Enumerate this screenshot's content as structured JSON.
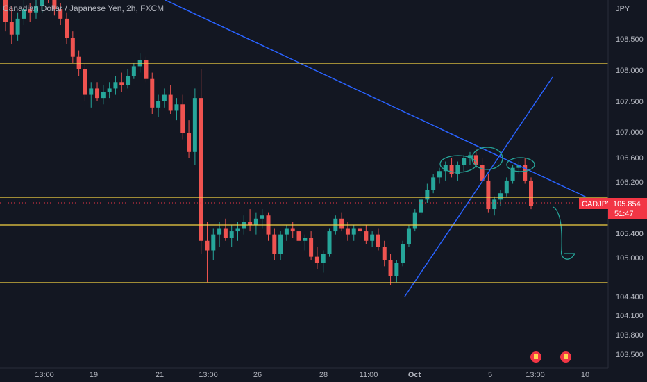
{
  "header": {
    "title": "Canadian Dollar / Japanese Yen, 2h, FXCM"
  },
  "chart_data": {
    "type": "candlestick",
    "symbol": "CADJPY",
    "currency": "JPY",
    "price_ticks": [
      "108.500",
      "108.000",
      "107.500",
      "107.000",
      "106.600",
      "106.200",
      "105.800",
      "105.400",
      "105.000",
      "104.400",
      "104.100",
      "103.800",
      "103.500"
    ],
    "x_ticks": [
      "13:00",
      "19",
      "21",
      "13:00",
      "26",
      "28",
      "11:00",
      "Oct",
      "5",
      "13:00",
      "10"
    ],
    "levels": [
      {
        "price": "108.103"
      },
      {
        "price": "105.955"
      },
      {
        "price": "105.514"
      },
      {
        "price": "104.610"
      }
    ],
    "current_price": {
      "label": "CADJPY",
      "value": "105.854",
      "countdown": "51:47"
    },
    "candles": [
      [
        109.25,
        109.35,
        108.6,
        108.75
      ],
      [
        108.75,
        109.0,
        108.4,
        108.55
      ],
      [
        108.55,
        108.9,
        108.45,
        108.8
      ],
      [
        108.8,
        109.1,
        108.7,
        108.95
      ],
      [
        108.95,
        109.05,
        108.75,
        108.9
      ],
      [
        108.9,
        109.1,
        108.8,
        109.0
      ],
      [
        109.0,
        109.3,
        108.9,
        109.2
      ],
      [
        109.2,
        109.4,
        109.05,
        109.15
      ],
      [
        109.15,
        109.25,
        108.85,
        108.95
      ],
      [
        108.95,
        109.05,
        108.7,
        108.8
      ],
      [
        108.8,
        108.9,
        108.4,
        108.5
      ],
      [
        108.5,
        108.6,
        108.1,
        108.2
      ],
      [
        108.2,
        108.3,
        107.9,
        108.0
      ],
      [
        108.0,
        108.1,
        107.5,
        107.6
      ],
      [
        107.6,
        107.8,
        107.4,
        107.7
      ],
      [
        107.7,
        107.8,
        107.5,
        107.55
      ],
      [
        107.55,
        107.75,
        107.45,
        107.65
      ],
      [
        107.65,
        107.8,
        107.55,
        107.7
      ],
      [
        107.7,
        107.9,
        107.6,
        107.8
      ],
      [
        107.8,
        107.95,
        107.65,
        107.75
      ],
      [
        107.75,
        108.0,
        107.7,
        107.9
      ],
      [
        107.9,
        108.1,
        107.85,
        108.05
      ],
      [
        108.05,
        108.25,
        107.95,
        108.15
      ],
      [
        108.15,
        108.2,
        107.8,
        107.85
      ],
      [
        107.85,
        107.95,
        107.3,
        107.4
      ],
      [
        107.4,
        107.6,
        107.25,
        107.5
      ],
      [
        107.5,
        107.7,
        107.4,
        107.6
      ],
      [
        107.6,
        107.75,
        107.3,
        107.35
      ],
      [
        107.35,
        107.55,
        107.2,
        107.45
      ],
      [
        107.45,
        107.6,
        106.9,
        107.0
      ],
      [
        107.0,
        107.2,
        106.6,
        106.7
      ],
      [
        106.7,
        107.7,
        106.5,
        107.55
      ],
      [
        107.55,
        108.0,
        105.1,
        105.3
      ],
      [
        105.3,
        105.6,
        104.65,
        105.15
      ],
      [
        105.15,
        105.5,
        105.0,
        105.4
      ],
      [
        105.4,
        105.6,
        105.2,
        105.5
      ],
      [
        105.5,
        105.65,
        105.3,
        105.35
      ],
      [
        105.35,
        105.55,
        105.2,
        105.45
      ],
      [
        105.45,
        105.6,
        105.3,
        105.5
      ],
      [
        105.5,
        105.7,
        105.4,
        105.6
      ],
      [
        105.6,
        105.8,
        105.45,
        105.55
      ],
      [
        105.55,
        105.75,
        105.4,
        105.65
      ],
      [
        105.65,
        105.8,
        105.5,
        105.7
      ],
      [
        105.7,
        105.75,
        105.3,
        105.4
      ],
      [
        105.4,
        105.5,
        105.0,
        105.1
      ],
      [
        105.1,
        105.45,
        105.0,
        105.4
      ],
      [
        105.4,
        105.55,
        105.3,
        105.5
      ],
      [
        105.5,
        105.6,
        105.35,
        105.45
      ],
      [
        105.45,
        105.55,
        105.2,
        105.3
      ],
      [
        105.3,
        105.4,
        105.15,
        105.35
      ],
      [
        105.35,
        105.45,
        105.0,
        105.05
      ],
      [
        105.05,
        105.2,
        104.85,
        104.95
      ],
      [
        104.95,
        105.15,
        104.8,
        105.1
      ],
      [
        105.1,
        105.5,
        105.05,
        105.45
      ],
      [
        105.45,
        105.7,
        105.4,
        105.65
      ],
      [
        105.65,
        105.75,
        105.45,
        105.5
      ],
      [
        105.5,
        105.6,
        105.3,
        105.4
      ],
      [
        105.4,
        105.55,
        105.3,
        105.5
      ],
      [
        105.5,
        105.6,
        105.35,
        105.45
      ],
      [
        105.45,
        105.55,
        105.25,
        105.3
      ],
      [
        105.3,
        105.45,
        105.2,
        105.4
      ],
      [
        105.4,
        105.5,
        105.15,
        105.2
      ],
      [
        105.2,
        105.3,
        104.9,
        105.0
      ],
      [
        105.0,
        105.1,
        104.6,
        104.75
      ],
      [
        104.75,
        105.0,
        104.65,
        104.95
      ],
      [
        104.95,
        105.3,
        104.9,
        105.25
      ],
      [
        105.25,
        105.55,
        105.2,
        105.5
      ],
      [
        105.5,
        105.8,
        105.45,
        105.75
      ],
      [
        105.75,
        106.0,
        105.7,
        105.95
      ],
      [
        105.95,
        106.2,
        105.9,
        106.1
      ],
      [
        106.1,
        106.35,
        106.05,
        106.3
      ],
      [
        106.3,
        106.45,
        106.2,
        106.4
      ],
      [
        106.4,
        106.55,
        106.25,
        106.5
      ],
      [
        106.5,
        106.6,
        106.3,
        106.35
      ],
      [
        106.35,
        106.55,
        106.25,
        106.5
      ],
      [
        106.5,
        106.65,
        106.4,
        106.6
      ],
      [
        106.6,
        106.7,
        106.5,
        106.65
      ],
      [
        106.65,
        106.75,
        106.45,
        106.5
      ],
      [
        106.5,
        106.6,
        106.2,
        106.25
      ],
      [
        106.25,
        106.35,
        105.75,
        105.8
      ],
      [
        105.8,
        106.0,
        105.7,
        105.95
      ],
      [
        105.95,
        106.1,
        105.85,
        106.05
      ],
      [
        106.05,
        106.3,
        106.0,
        106.25
      ],
      [
        106.25,
        106.5,
        106.2,
        106.45
      ],
      [
        106.45,
        106.55,
        106.35,
        106.5
      ],
      [
        106.5,
        106.6,
        106.2,
        106.25
      ],
      [
        106.25,
        106.3,
        105.8,
        105.85
      ]
    ]
  },
  "events": [
    {
      "icon": "earnings-flag-icon"
    },
    {
      "icon": "earnings-flag-icon"
    }
  ]
}
